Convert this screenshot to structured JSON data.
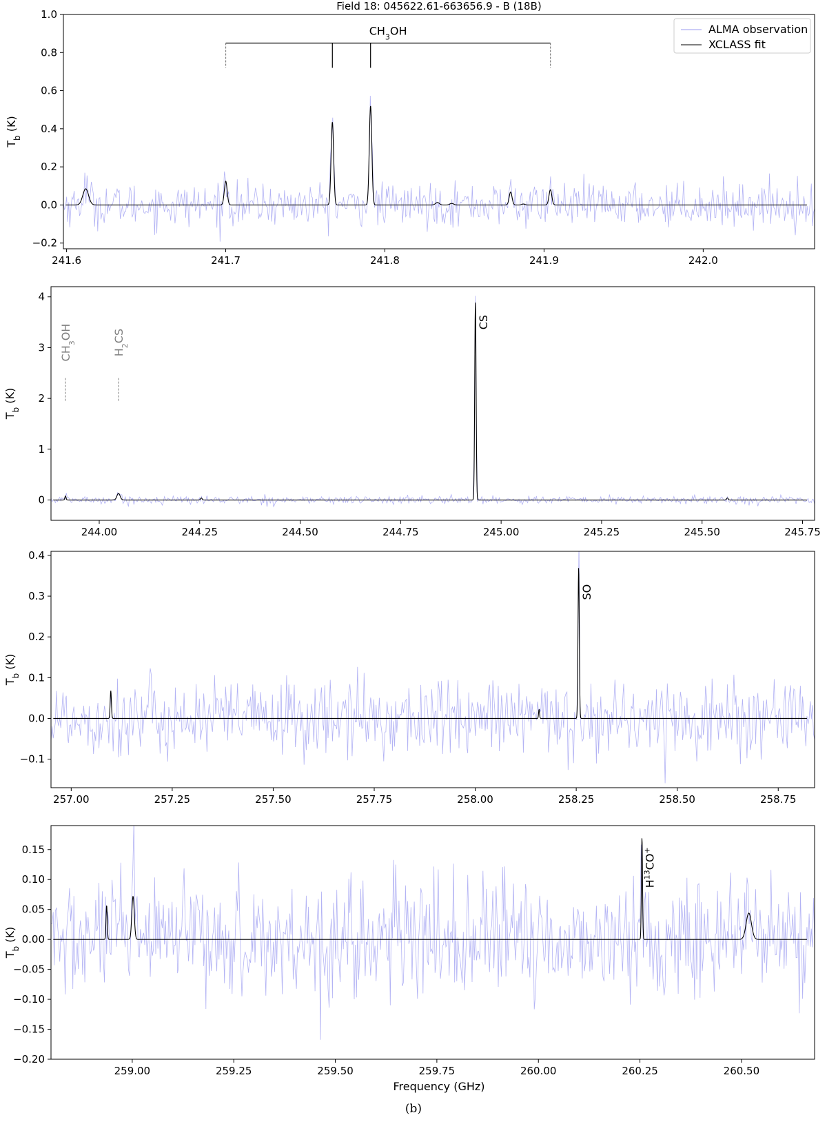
{
  "figure": {
    "title": "Field 18: 045622.61-663656.9 - B (18B)",
    "caption": "(b)",
    "colors": {
      "observation": "#9a9af0",
      "fit": "#000000",
      "guide": "#808080"
    },
    "legend": {
      "placement": "top-right",
      "entries": [
        "ALMA observation",
        "XCLASS fit"
      ]
    }
  },
  "chart_data": [
    {
      "type": "line",
      "panel": 1,
      "ylabel": "T_b (K)",
      "xlabel": "",
      "xlim": [
        241.598,
        242.07
      ],
      "ylim": [
        -0.23,
        1.0
      ],
      "xticks": [
        "241.6",
        "241.7",
        "241.8",
        "241.9",
        "242.0"
      ],
      "xtick_values": [
        241.6,
        241.7,
        241.8,
        241.9,
        242.0
      ],
      "yticks": [
        "−0.2",
        "0.0",
        "0.2",
        "0.4",
        "0.6",
        "0.8",
        "1.0"
      ],
      "ytick_values": [
        -0.2,
        0,
        0.2,
        0.4,
        0.6,
        0.8,
        1.0
      ],
      "noise_rms": 0.055,
      "series": [
        {
          "name": "ALMA observation",
          "style": "noise"
        },
        {
          "name": "XCLASS fit",
          "style": "lines"
        }
      ],
      "fit_lines": [
        [
          241.612,
          0.085,
          0.0018
        ],
        [
          241.7,
          0.125,
          0.0009
        ],
        [
          241.767,
          0.435,
          0.0008
        ],
        [
          241.791,
          0.52,
          0.0008
        ],
        [
          241.833,
          0.013,
          0.0012
        ],
        [
          241.842,
          0.008,
          0.0012
        ],
        [
          241.879,
          0.068,
          0.0009
        ],
        [
          241.887,
          0.005,
          0.001
        ],
        [
          241.904,
          0.08,
          0.0009
        ]
      ],
      "annotations": [
        {
          "text": "CH3OH",
          "label_main": "CH",
          "sub": "3",
          "label_rest": "OH",
          "kind": "bracket",
          "span": [
            241.7,
            241.904
          ],
          "bar_y": 0.85,
          "drops": [
            {
              "x": 241.7,
              "style": "dashed"
            },
            {
              "x": 241.767,
              "style": "solid"
            },
            {
              "x": 241.791,
              "style": "solid"
            },
            {
              "x": 241.904,
              "style": "dashed"
            }
          ],
          "drop_to": 0.72
        }
      ]
    },
    {
      "type": "line",
      "panel": 2,
      "ylabel": "T_b (K)",
      "xlabel": "",
      "xlim": [
        243.88,
        245.78
      ],
      "ylim": [
        -0.4,
        4.2
      ],
      "xticks": [
        "244.00",
        "244.25",
        "244.50",
        "244.75",
        "245.00",
        "245.25",
        "245.50",
        "245.75"
      ],
      "xtick_values": [
        244.0,
        244.25,
        244.5,
        244.75,
        245.0,
        245.25,
        245.5,
        245.75
      ],
      "yticks": [
        "0",
        "1",
        "2",
        "3",
        "4"
      ],
      "ytick_values": [
        0,
        1,
        2,
        3,
        4
      ],
      "noise_rms": 0.04,
      "series": [
        {
          "name": "ALMA observation",
          "style": "noise"
        },
        {
          "name": "XCLASS fit",
          "style": "lines"
        }
      ],
      "fit_lines": [
        [
          243.916,
          0.08,
          0.0015
        ],
        [
          244.048,
          0.13,
          0.004
        ],
        [
          244.254,
          0.04,
          0.002
        ],
        [
          244.936,
          3.9,
          0.0017
        ],
        [
          245.563,
          0.04,
          0.002
        ]
      ],
      "annotations": [
        {
          "text": "CH3OH",
          "label_main": "CH",
          "sub": "3",
          "label_rest": "OH",
          "kind": "guide",
          "x": 243.916,
          "y_text": 3.1,
          "dash": [
            1.95,
            2.4
          ],
          "color": "guide"
        },
        {
          "text": "H2CS",
          "label_main": "H",
          "sub": "2",
          "label_rest": "CS",
          "kind": "guide",
          "x": 244.048,
          "y_text": 3.1,
          "dash": [
            1.95,
            2.4
          ],
          "color": "guide"
        },
        {
          "text": "CS",
          "label_main": "CS",
          "sub": "",
          "label_rest": "",
          "kind": "label",
          "x": 244.955,
          "y_text": 3.5,
          "color": "fit"
        }
      ]
    },
    {
      "type": "line",
      "panel": 3,
      "ylabel": "T_b (K)",
      "xlabel": "",
      "xlim": [
        256.95,
        258.84
      ],
      "ylim": [
        -0.17,
        0.41
      ],
      "xticks": [
        "257.00",
        "257.25",
        "257.50",
        "257.75",
        "258.00",
        "258.25",
        "258.50",
        "258.75"
      ],
      "xtick_values": [
        257.0,
        257.25,
        257.5,
        257.75,
        258.0,
        258.25,
        258.5,
        258.75
      ],
      "yticks": [
        "−0.1",
        "0.0",
        "0.1",
        "0.2",
        "0.3",
        "0.4"
      ],
      "ytick_values": [
        -0.1,
        0,
        0.1,
        0.2,
        0.3,
        0.4
      ],
      "noise_rms": 0.048,
      "series": [
        {
          "name": "ALMA observation",
          "style": "noise"
        },
        {
          "name": "XCLASS fit",
          "style": "lines"
        }
      ],
      "fit_lines": [
        [
          257.098,
          0.068,
          0.0015
        ],
        [
          258.158,
          0.022,
          0.0012
        ],
        [
          258.256,
          0.37,
          0.0016
        ]
      ],
      "annotations": [
        {
          "text": "SO",
          "label_main": "SO",
          "sub": "",
          "label_rest": "",
          "kind": "label",
          "x": 258.275,
          "y_text": 0.31,
          "color": "fit"
        }
      ]
    },
    {
      "type": "line",
      "panel": 4,
      "ylabel": "T_b (K)",
      "xlabel": "Frequency (GHz)",
      "xlim": [
        258.8,
        260.68
      ],
      "ylim": [
        -0.2,
        0.19
      ],
      "xticks": [
        "259.00",
        "259.25",
        "259.50",
        "259.75",
        "260.00",
        "260.25",
        "260.50"
      ],
      "xtick_values": [
        259.0,
        259.25,
        259.5,
        259.75,
        260.0,
        260.25,
        260.5
      ],
      "yticks": [
        "−0.20",
        "−0.15",
        "−0.10",
        "−0.05",
        "0.00",
        "0.05",
        "0.10",
        "0.15"
      ],
      "ytick_values": [
        -0.2,
        -0.15,
        -0.1,
        -0.05,
        0,
        0.05,
        0.1,
        0.15
      ],
      "noise_rms": 0.05,
      "series": [
        {
          "name": "ALMA observation",
          "style": "noise"
        },
        {
          "name": "XCLASS fit",
          "style": "lines"
        }
      ],
      "fit_lines": [
        [
          258.937,
          0.057,
          0.0015
        ],
        [
          259.002,
          0.072,
          0.003
        ],
        [
          260.255,
          0.17,
          0.0014
        ],
        [
          260.518,
          0.044,
          0.0065
        ]
      ],
      "annotations": [
        {
          "text": "H13CO+",
          "label_main": "H",
          "sup1": "13",
          "label_rest": "CO",
          "sup2": "+",
          "kind": "label13",
          "x": 260.274,
          "y_text": 0.12,
          "color": "fit"
        }
      ]
    }
  ]
}
